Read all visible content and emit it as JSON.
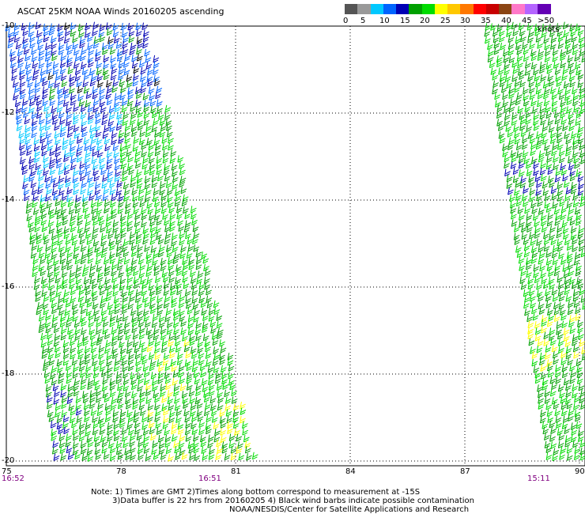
{
  "title": "ASCAT 25KM NOAA Winds 20160205 ascending",
  "legend": {
    "colors": [
      "#555555",
      "#999999",
      "#00c8ff",
      "#0064ff",
      "#0000b4",
      "#00a000",
      "#00dc00",
      "#ffff00",
      "#ffc800",
      "#ff7800",
      "#ff0000",
      "#c80000",
      "#8b4513",
      "#ff78c8",
      "#b464ff",
      "#6400b4"
    ],
    "ticks": [
      "0",
      "5",
      "10",
      "15",
      "20",
      "25",
      "30",
      "35",
      "40",
      "45",
      ">50 knots"
    ]
  },
  "x_axis": {
    "labels": [
      "75",
      "78",
      "81",
      "84",
      "87",
      "90"
    ]
  },
  "y_axis": {
    "labels": [
      "-10",
      "-12",
      "-14",
      "-16",
      "-18",
      "-20"
    ]
  },
  "pass_times": [
    "16:52",
    "16:51",
    "15:11"
  ],
  "notes": [
    "Note: 1) Times are GMT 2)Times along bottom correspond to measurement at -15S",
    "3)Data buffer is 22 hrs from 20160205 4) Black wind barbs indicate possible contamination",
    "NOAA/NESDIS/Center for Satellite Applications and Research"
  ]
}
